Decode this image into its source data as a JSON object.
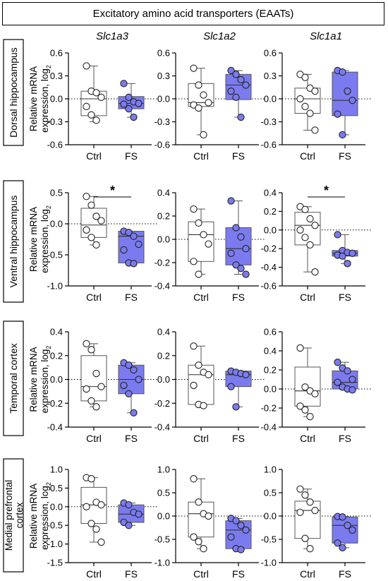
{
  "title": "Excitatory amino acid transporters (EAATs)",
  "genes": [
    "Slc1a3",
    "Slc1a2",
    "Slc1a1"
  ],
  "ylabel_line1": "Relative mRNA",
  "ylabel_line2": "expression, log",
  "ylabel_sub": "2",
  "groups": [
    "Ctrl",
    "FS"
  ],
  "colors": {
    "ctrl_fill": "#ffffff",
    "fs_fill": "#7b7bef",
    "box_stroke": "#555555"
  },
  "chart_data": [
    {
      "type": "box",
      "region": "Dorsal hippocampus",
      "gene": "Slc1a3",
      "ylim": [
        -0.6,
        0.6
      ],
      "yticks": [
        "-0.6",
        "-0.3",
        "0.0",
        "0.3",
        "0.6"
      ],
      "tick_values": [
        -0.6,
        -0.3,
        0.0,
        0.3,
        0.6
      ],
      "series": [
        {
          "name": "Ctrl",
          "min": -0.3,
          "q1": -0.22,
          "median": 0.0,
          "q3": 0.1,
          "max": 0.43,
          "points": [
            0.43,
            0.1,
            0.08,
            0.02,
            -0.1,
            -0.21,
            -0.28
          ]
        },
        {
          "name": "FS",
          "min": -0.24,
          "q1": -0.13,
          "median": -0.06,
          "q3": 0.03,
          "max": 0.2,
          "points": [
            0.2,
            0.02,
            -0.04,
            -0.06,
            -0.07,
            -0.13,
            -0.24
          ]
        }
      ],
      "significant": false
    },
    {
      "type": "box",
      "region": "Dorsal hippocampus",
      "gene": "Slc1a2",
      "ylim": [
        -0.6,
        0.6
      ],
      "yticks": [
        "-0.6",
        "-0.3",
        "0.0",
        "0.3",
        "0.6"
      ],
      "tick_values": [
        -0.6,
        -0.3,
        0.0,
        0.3,
        0.6
      ],
      "series": [
        {
          "name": "Ctrl",
          "min": -0.47,
          "q1": -0.1,
          "median": -0.05,
          "q3": 0.2,
          "max": 0.4,
          "points": [
            0.4,
            0.18,
            0.05,
            -0.05,
            -0.08,
            -0.12,
            -0.47
          ]
        },
        {
          "name": "FS",
          "min": -0.24,
          "q1": -0.01,
          "median": 0.18,
          "q3": 0.32,
          "max": 0.37,
          "points": [
            0.37,
            0.32,
            0.25,
            0.18,
            0.1,
            0.02,
            -0.24
          ]
        }
      ],
      "significant": false
    },
    {
      "type": "box",
      "region": "Dorsal hippocampus",
      "gene": "Slc1a1",
      "ylim": [
        -0.6,
        0.6
      ],
      "yticks": [
        "-0.6",
        "-0.3",
        "0.0",
        "0.3",
        "0.6"
      ],
      "tick_values": [
        -0.6,
        -0.3,
        0.0,
        0.3,
        0.6
      ],
      "series": [
        {
          "name": "Ctrl",
          "min": -0.41,
          "q1": -0.19,
          "median": 0.0,
          "q3": 0.14,
          "max": 0.32,
          "points": [
            0.32,
            0.28,
            0.14,
            0.1,
            0.0,
            -0.1,
            -0.19,
            -0.41
          ]
        },
        {
          "name": "FS",
          "min": -0.47,
          "q1": -0.22,
          "median": -0.02,
          "q3": 0.35,
          "max": 0.37,
          "points": [
            0.37,
            0.35,
            0.1,
            -0.02,
            -0.2,
            -0.47
          ]
        }
      ],
      "significant": false
    },
    {
      "type": "box",
      "region": "Ventral hippocampus",
      "gene": "Slc1a3",
      "ylim": [
        -1.0,
        0.5
      ],
      "yticks": [
        "-1.0",
        "-0.5",
        "0.0",
        "0.5"
      ],
      "tick_values": [
        -1.0,
        -0.5,
        0.0,
        0.5
      ],
      "series": [
        {
          "name": "Ctrl",
          "min": -0.34,
          "q1": -0.22,
          "median": -0.02,
          "q3": 0.25,
          "max": 0.44,
          "points": [
            0.44,
            0.3,
            0.12,
            0.05,
            -0.1,
            -0.22,
            -0.34
          ]
        },
        {
          "name": "FS",
          "min": -0.64,
          "q1": -0.63,
          "median": -0.2,
          "q3": -0.12,
          "max": -0.12,
          "points": [
            -0.12,
            -0.14,
            -0.2,
            -0.33,
            -0.42,
            -0.63,
            -0.64
          ]
        }
      ],
      "significant": true,
      "significance_label": "*"
    },
    {
      "type": "box",
      "region": "Ventral hippocampus",
      "gene": "Slc1a2",
      "ylim": [
        -0.4,
        0.4
      ],
      "yticks": [
        "-0.4",
        "-0.2",
        "0.0",
        "0.2",
        "0.4"
      ],
      "tick_values": [
        -0.4,
        -0.2,
        0.0,
        0.2,
        0.4
      ],
      "series": [
        {
          "name": "Ctrl",
          "min": -0.3,
          "q1": -0.19,
          "median": 0.04,
          "q3": 0.15,
          "max": 0.26,
          "points": [
            0.26,
            0.14,
            0.04,
            -0.04,
            -0.19,
            -0.3
          ]
        },
        {
          "name": "FS",
          "min": -0.3,
          "q1": -0.22,
          "median": -0.08,
          "q3": 0.1,
          "max": 0.33,
          "points": [
            0.33,
            0.1,
            0.02,
            -0.08,
            -0.12,
            -0.22,
            -0.25,
            -0.3
          ]
        }
      ],
      "significant": false
    },
    {
      "type": "box",
      "region": "Ventral hippocampus",
      "gene": "Slc1a1",
      "ylim": [
        -0.6,
        0.4
      ],
      "yticks": [
        "-0.6",
        "-0.4",
        "-0.2",
        "0.0",
        "0.2",
        "0.4"
      ],
      "tick_values": [
        -0.6,
        -0.4,
        -0.2,
        0.0,
        0.2,
        0.4
      ],
      "series": [
        {
          "name": "Ctrl",
          "min": -0.45,
          "q1": -0.16,
          "median": 0.05,
          "q3": 0.19,
          "max": 0.25,
          "points": [
            0.25,
            0.22,
            0.12,
            0.05,
            0.0,
            -0.08,
            -0.16,
            -0.45
          ]
        },
        {
          "name": "FS",
          "min": -0.36,
          "q1": -0.28,
          "median": -0.25,
          "q3": -0.22,
          "max": -0.05,
          "points": [
            -0.05,
            -0.22,
            -0.24,
            -0.25,
            -0.27,
            -0.28,
            -0.36
          ]
        }
      ],
      "significant": true,
      "significance_label": "*"
    },
    {
      "type": "box",
      "region": "Temporal cortex",
      "gene": "Slc1a3",
      "ylim": [
        -0.4,
        0.4
      ],
      "yticks": [
        "-0.4",
        "-0.2",
        "0.0",
        "0.2",
        "0.4"
      ],
      "tick_values": [
        -0.4,
        -0.2,
        0.0,
        0.2,
        0.4
      ],
      "series": [
        {
          "name": "Ctrl",
          "min": -0.23,
          "q1": -0.18,
          "median": -0.06,
          "q3": 0.2,
          "max": 0.3,
          "points": [
            0.3,
            0.25,
            0.05,
            -0.06,
            -0.08,
            -0.18,
            -0.23
          ]
        },
        {
          "name": "FS",
          "min": -0.28,
          "q1": -0.12,
          "median": 0.0,
          "q3": 0.12,
          "max": 0.14,
          "points": [
            0.14,
            0.12,
            0.08,
            0.0,
            -0.05,
            -0.12,
            -0.28
          ]
        }
      ],
      "significant": false
    },
    {
      "type": "box",
      "region": "Temporal cortex",
      "gene": "Slc1a2",
      "ylim": [
        -0.4,
        0.4
      ],
      "yticks": [
        "-0.4",
        "-0.2",
        "0.0",
        "0.2",
        "0.4"
      ],
      "tick_values": [
        -0.4,
        -0.2,
        0.0,
        0.2,
        0.4
      ],
      "series": [
        {
          "name": "Ctrl",
          "min": -0.22,
          "q1": -0.21,
          "median": 0.04,
          "q3": 0.12,
          "max": 0.28,
          "points": [
            0.28,
            0.12,
            0.06,
            0.04,
            -0.05,
            -0.21,
            -0.22
          ]
        },
        {
          "name": "FS",
          "min": -0.23,
          "q1": -0.06,
          "median": 0.04,
          "q3": 0.07,
          "max": 0.07,
          "points": [
            0.07,
            0.06,
            0.05,
            0.04,
            -0.06,
            -0.23
          ]
        }
      ],
      "significant": false
    },
    {
      "type": "box",
      "region": "Temporal cortex",
      "gene": "Slc1a1",
      "ylim": [
        -0.4,
        0.6
      ],
      "yticks": [
        "-0.4",
        "-0.2",
        "0.0",
        "0.2",
        "0.4",
        "0.6"
      ],
      "tick_values": [
        -0.4,
        -0.2,
        0.0,
        0.2,
        0.4,
        0.6
      ],
      "series": [
        {
          "name": "Ctrl",
          "min": -0.29,
          "q1": -0.18,
          "median": -0.02,
          "q3": 0.23,
          "max": 0.43,
          "points": [
            0.43,
            0.02,
            -0.02,
            -0.05,
            -0.18,
            -0.22,
            -0.29
          ]
        },
        {
          "name": "FS",
          "min": -0.01,
          "q1": 0.0,
          "median": 0.07,
          "q3": 0.19,
          "max": 0.28,
          "points": [
            0.28,
            0.22,
            0.19,
            0.1,
            0.07,
            0.02,
            0.0,
            -0.01
          ]
        }
      ],
      "significant": false
    },
    {
      "type": "box",
      "region": "Medial prefrontal cortex",
      "gene": "Slc1a3",
      "ylim": [
        -1.5,
        1.0
      ],
      "yticks": [
        "-1.5",
        "-1.0",
        "-0.5",
        "0.0",
        "0.5",
        "1.0"
      ],
      "tick_values": [
        -1.5,
        -1.0,
        -0.5,
        0.0,
        0.5,
        1.0
      ],
      "series": [
        {
          "name": "Ctrl",
          "min": -0.95,
          "q1": -0.45,
          "median": 0.05,
          "q3": 0.52,
          "max": 0.78,
          "points": [
            0.78,
            0.75,
            0.12,
            0.05,
            0.0,
            -0.45,
            -0.6,
            -0.95
          ]
        },
        {
          "name": "FS",
          "min": -0.5,
          "q1": -0.42,
          "median": -0.2,
          "q3": 0.05,
          "max": 0.1,
          "points": [
            0.1,
            0.05,
            -0.15,
            -0.2,
            -0.42,
            -0.5
          ]
        }
      ],
      "significant": false
    },
    {
      "type": "box",
      "region": "Medial prefrontal cortex",
      "gene": "Slc1a2",
      "ylim": [
        -1.0,
        1.0
      ],
      "yticks": [
        "-1.0",
        "-0.5",
        "0.0",
        "0.5",
        "1.0"
      ],
      "tick_values": [
        -1.0,
        -0.5,
        0.0,
        0.5,
        1.0
      ],
      "series": [
        {
          "name": "Ctrl",
          "min": -0.7,
          "q1": -0.45,
          "median": 0.05,
          "q3": 0.3,
          "max": 0.8,
          "points": [
            0.8,
            0.3,
            0.05,
            0.0,
            -0.45,
            -0.55,
            -0.7
          ]
        },
        {
          "name": "FS",
          "min": -0.72,
          "q1": -0.7,
          "median": -0.3,
          "q3": -0.1,
          "max": -0.05,
          "points": [
            -0.05,
            -0.1,
            -0.2,
            -0.3,
            -0.45,
            -0.7,
            -0.72
          ]
        }
      ],
      "significant": false
    },
    {
      "type": "box",
      "region": "Medial prefrontal cortex",
      "gene": "Slc1a1",
      "ylim": [
        -1.0,
        1.0
      ],
      "yticks": [
        "-1.0",
        "-0.5",
        "0.0",
        "0.5",
        "1.0"
      ],
      "tick_values": [
        -1.0,
        -0.5,
        0.0,
        0.5,
        1.0
      ],
      "series": [
        {
          "name": "Ctrl",
          "min": -0.7,
          "q1": -0.48,
          "median": 0.12,
          "q3": 0.32,
          "max": 0.58,
          "points": [
            0.58,
            0.45,
            0.3,
            0.12,
            0.08,
            -0.48,
            -0.7
          ]
        },
        {
          "name": "FS",
          "min": -0.68,
          "q1": -0.58,
          "median": -0.2,
          "q3": -0.02,
          "max": -0.01,
          "points": [
            -0.01,
            -0.02,
            -0.2,
            -0.3,
            -0.58,
            -0.68
          ]
        }
      ],
      "significant": false
    }
  ]
}
